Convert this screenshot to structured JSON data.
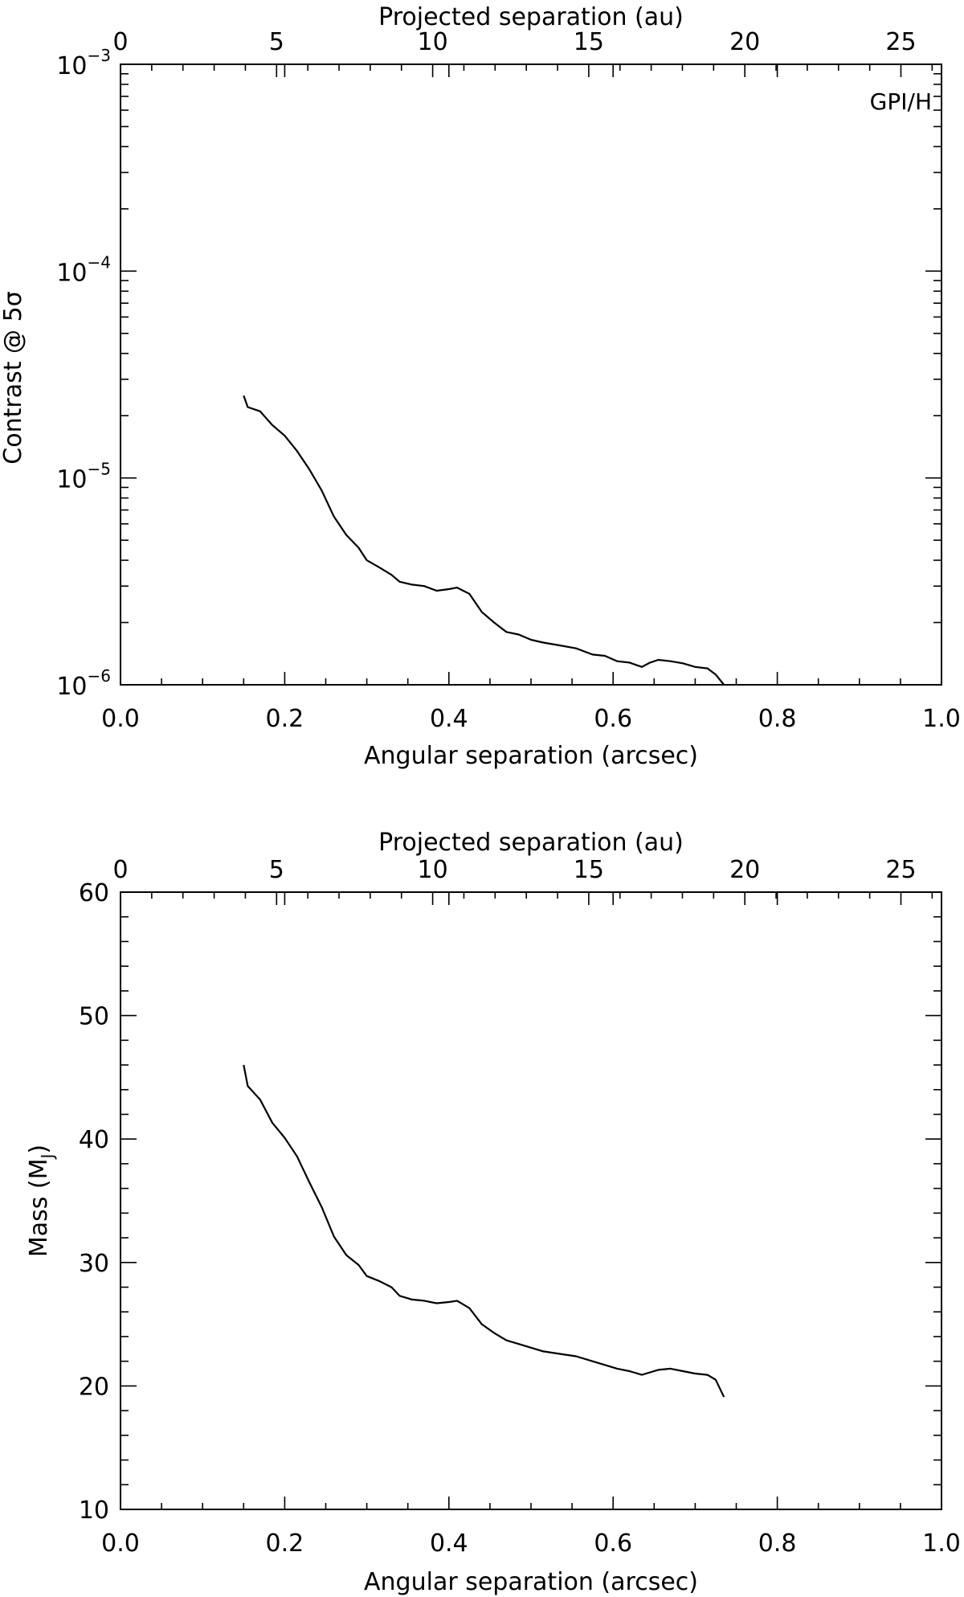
{
  "chart_data": [
    {
      "type": "line",
      "title": "",
      "annotation": "GPI/H",
      "xlabel": "Angular separation (arcsec)",
      "xlabel_top": "Projected separation (au)",
      "ylabel": "Contrast @ 5σ",
      "xlim": [
        0.0,
        1.0
      ],
      "xlim_top": [
        0,
        26.3
      ],
      "yscale": "log",
      "ylim": [
        1e-06,
        0.001
      ],
      "x_ticks": [
        "0.0",
        "0.2",
        "0.4",
        "0.6",
        "0.8",
        "1.0"
      ],
      "x_top_ticks": [
        "0",
        "5",
        "10",
        "15",
        "20",
        "25"
      ],
      "y_ticks": [
        {
          "base": "10",
          "exp": "−6",
          "value": 1e-06
        },
        {
          "base": "10",
          "exp": "−5",
          "value": 1e-05
        },
        {
          "base": "10",
          "exp": "−4",
          "value": 0.0001
        },
        {
          "base": "10",
          "exp": "−3",
          "value": 0.001
        }
      ],
      "series": [
        {
          "name": "contrast",
          "x": [
            0.15,
            0.155,
            0.17,
            0.185,
            0.2,
            0.215,
            0.23,
            0.245,
            0.26,
            0.275,
            0.29,
            0.3,
            0.315,
            0.33,
            0.34,
            0.355,
            0.37,
            0.385,
            0.4,
            0.41,
            0.425,
            0.44,
            0.455,
            0.47,
            0.485,
            0.5,
            0.515,
            0.535,
            0.555,
            0.575,
            0.59,
            0.605,
            0.62,
            0.635,
            0.645,
            0.655,
            0.67,
            0.685,
            0.7,
            0.715,
            0.725,
            0.735
          ],
          "y": [
            2.5e-05,
            2.2e-05,
            2.1e-05,
            1.8e-05,
            1.6e-05,
            1.35e-05,
            1.1e-05,
            8.7e-06,
            6.5e-06,
            5.3e-06,
            4.6e-06,
            4e-06,
            3.7e-06,
            3.4e-06,
            3.15e-06,
            3.05e-06,
            3e-06,
            2.85e-06,
            2.9e-06,
            2.95e-06,
            2.75e-06,
            2.25e-06,
            2e-06,
            1.8e-06,
            1.75e-06,
            1.65e-06,
            1.6e-06,
            1.55e-06,
            1.5e-06,
            1.4e-06,
            1.38e-06,
            1.3e-06,
            1.28e-06,
            1.22e-06,
            1.28e-06,
            1.32e-06,
            1.3e-06,
            1.27e-06,
            1.22e-06,
            1.2e-06,
            1.12e-06,
            1e-06
          ]
        }
      ]
    },
    {
      "type": "line",
      "title": "",
      "xlabel": "Angular separation (arcsec)",
      "xlabel_top": "Projected separation (au)",
      "ylabel": "Mass (M",
      "ylabel_sub": "J",
      "ylabel_close": ")",
      "xlim": [
        0.0,
        1.0
      ],
      "xlim_top": [
        0,
        26.3
      ],
      "ylim": [
        10,
        60
      ],
      "x_ticks": [
        "0.0",
        "0.2",
        "0.4",
        "0.6",
        "0.8",
        "1.0"
      ],
      "x_top_ticks": [
        "0",
        "5",
        "10",
        "15",
        "20",
        "25"
      ],
      "y_ticks": [
        "10",
        "20",
        "30",
        "40",
        "50",
        "60"
      ],
      "series": [
        {
          "name": "mass",
          "x": [
            0.15,
            0.155,
            0.17,
            0.185,
            0.2,
            0.215,
            0.23,
            0.245,
            0.26,
            0.275,
            0.29,
            0.3,
            0.315,
            0.33,
            0.34,
            0.355,
            0.37,
            0.385,
            0.4,
            0.41,
            0.425,
            0.44,
            0.455,
            0.47,
            0.485,
            0.5,
            0.515,
            0.535,
            0.555,
            0.575,
            0.59,
            0.605,
            0.62,
            0.635,
            0.645,
            0.655,
            0.67,
            0.685,
            0.7,
            0.715,
            0.725,
            0.735
          ],
          "y": [
            46.0,
            44.3,
            43.2,
            41.3,
            40.1,
            38.6,
            36.5,
            34.5,
            32.1,
            30.6,
            29.8,
            28.9,
            28.5,
            28.0,
            27.3,
            27.0,
            26.9,
            26.7,
            26.8,
            26.9,
            26.3,
            25.0,
            24.3,
            23.7,
            23.4,
            23.1,
            22.8,
            22.6,
            22.4,
            22.0,
            21.7,
            21.4,
            21.2,
            20.9,
            21.1,
            21.3,
            21.4,
            21.2,
            21.0,
            20.9,
            20.5,
            19.1
          ]
        }
      ]
    }
  ]
}
